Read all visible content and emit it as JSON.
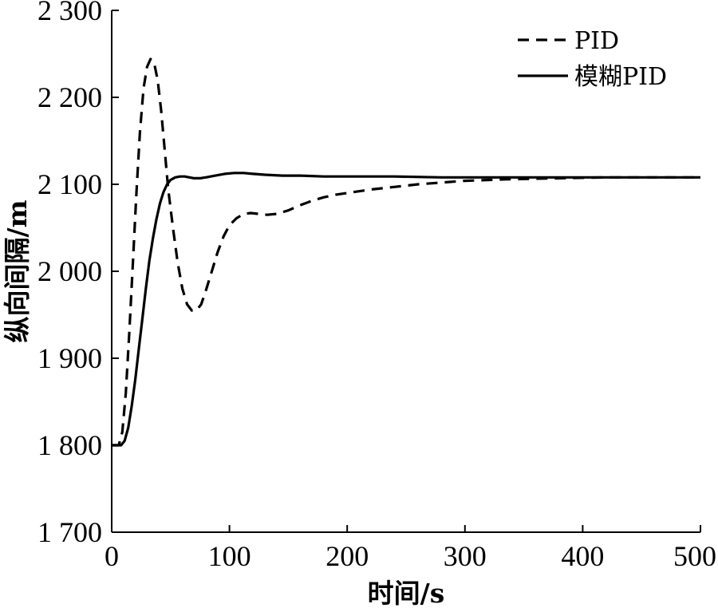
{
  "chart_data": {
    "type": "line",
    "title": "",
    "xlabel": "时间/s",
    "ylabel": "纵向间隔/m",
    "xlim": [
      0,
      500
    ],
    "ylim": [
      1700,
      2300
    ],
    "xticks": [
      0,
      100,
      200,
      300,
      400,
      500
    ],
    "yticks": [
      1700,
      1800,
      1900,
      2000,
      2100,
      2200,
      2300
    ],
    "xtick_labels": [
      "0",
      "100",
      "200",
      "300",
      "400",
      "500"
    ],
    "ytick_labels": [
      "1 700",
      "1 800",
      "1 900",
      "2 000",
      "2 100",
      "2 200",
      "2 300"
    ],
    "grid": false,
    "legend_position": "top-right",
    "series": [
      {
        "name": "PID",
        "style": "dashed",
        "color": "#000000",
        "x": [
          0,
          6,
          9,
          12,
          15,
          18,
          21,
          24,
          27,
          30,
          33,
          36,
          39,
          42,
          45,
          48,
          52,
          56,
          60,
          64,
          68,
          72,
          76,
          80,
          85,
          90,
          95,
          100,
          106,
          112,
          118,
          125,
          132,
          140,
          150,
          160,
          170,
          180,
          190,
          200,
          220,
          240,
          260,
          280,
          300,
          340,
          380,
          420,
          460,
          500
        ],
        "y": [
          1800,
          1800,
          1815,
          1860,
          1930,
          2010,
          2090,
          2160,
          2210,
          2235,
          2244,
          2240,
          2220,
          2185,
          2140,
          2095,
          2050,
          2010,
          1980,
          1962,
          1955,
          1955,
          1962,
          1978,
          2000,
          2022,
          2040,
          2053,
          2061,
          2066,
          2067,
          2066,
          2065,
          2066,
          2070,
          2076,
          2081,
          2085,
          2088,
          2090,
          2094,
          2097,
          2100,
          2102,
          2104,
          2106,
          2107,
          2108,
          2108,
          2108
        ]
      },
      {
        "name": "模糊PID",
        "style": "solid",
        "color": "#000000",
        "x": [
          0,
          8,
          11,
          14,
          17,
          20,
          23,
          26,
          29,
          32,
          35,
          38,
          41,
          44,
          47,
          50,
          54,
          58,
          62,
          66,
          70,
          75,
          80,
          88,
          96,
          104,
          112,
          120,
          130,
          145,
          160,
          180,
          200,
          240,
          280,
          320,
          360,
          400,
          450,
          500
        ],
        "y": [
          1800,
          1800,
          1805,
          1820,
          1845,
          1875,
          1910,
          1945,
          1980,
          2012,
          2038,
          2060,
          2078,
          2091,
          2100,
          2105,
          2108,
          2109,
          2109,
          2108,
          2107,
          2107,
          2108,
          2110,
          2112,
          2113,
          2113,
          2112,
          2111,
          2110,
          2110,
          2109,
          2109,
          2109,
          2108,
          2108,
          2108,
          2108,
          2108,
          2108
        ]
      }
    ]
  }
}
